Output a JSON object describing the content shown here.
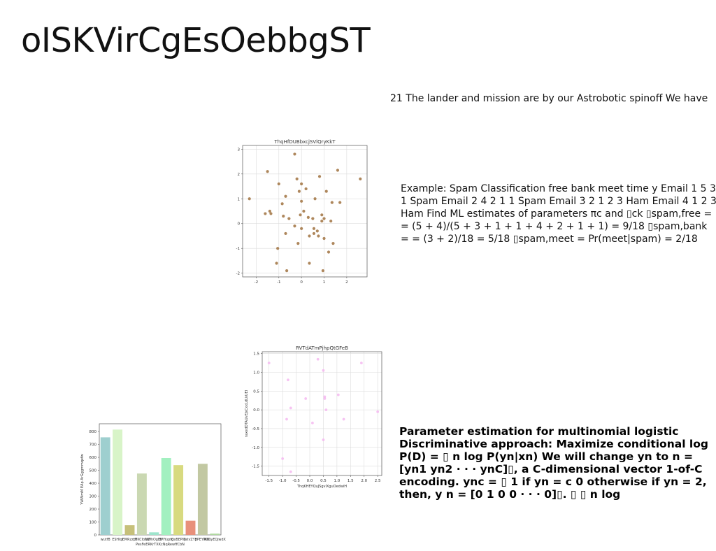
{
  "title": "oISKVirCgEsOebbgST",
  "caption": "21 The lander and mission are by our Astrobotic spinoff We have",
  "paragraph1": "Example: Spam Classification free bank meet time y Email 1 5 3 1 Spam Email 2 4 2 1 1 Spam Email 3 2 1 2 3 Ham Email 4 1 2 3 Ham Find ML estimates of parameters πc and ▯ck ▯spam,free = = (5 + 4)/(5 + 3 + 1 + 1 + 4 + 2 + 1 + 1) = 9/18 ▯spam,bank = = (3 + 2)/18 = 5/18 ▯spam,meet = Pr(meet|spam) = 2/18",
  "paragraph2": "Parameter estimation for multinomial logistic Discriminative approach: Maximize conditional log P(D) = ▯ n log P(yn|xn) We will change yn to n = [yn1 yn2 · · · ynC]▯, a C-dimensional vector 1-of-C encoding. ync = ▯ 1 if yn = c 0 otherwise if yn = 2, then, y n = [0 1 0 0 · · · 0]▯. ▯ ▯ n log",
  "chart_data": [
    {
      "type": "scatter",
      "title": "ThqHfDUBbxcjSVlQryKkT",
      "xlabel": "",
      "ylabel": "",
      "xlim": [
        -2.6,
        2.9
      ],
      "ylim": [
        -2.15,
        3.15
      ],
      "xticks": [
        "-2",
        "-1",
        "0",
        "1",
        "2"
      ],
      "yticks": [
        "-2",
        "-1",
        "0",
        "1",
        "2",
        "3"
      ],
      "grid": true,
      "color": "#a57a4a",
      "x": [
        -2.3,
        -1.5,
        -1.4,
        -1.35,
        -1.1,
        -1.0,
        -0.85,
        -0.7,
        -0.65,
        -0.55,
        -0.3,
        -0.2,
        -0.15,
        -0.1,
        -0.05,
        0.0,
        0.0,
        0.1,
        0.2,
        0.3,
        0.35,
        0.5,
        0.55,
        0.6,
        0.7,
        0.75,
        0.8,
        0.9,
        1.0,
        1.0,
        1.1,
        1.2,
        1.3,
        1.35,
        1.6,
        1.7,
        2.6,
        -1.6,
        -0.8,
        0.0,
        0.95,
        -1.05,
        -0.7,
        0.55,
        -0.3,
        0.9,
        0.35,
        1.4
      ],
      "y": [
        1.0,
        2.1,
        0.5,
        0.4,
        -1.6,
        1.6,
        0.8,
        1.1,
        -1.9,
        0.2,
        2.8,
        1.8,
        -0.8,
        1.3,
        0.35,
        1.6,
        -0.2,
        0.5,
        1.4,
        0.25,
        -0.5,
        0.2,
        -0.4,
        1.0,
        -0.3,
        -0.5,
        1.9,
        0.1,
        -0.6,
        0.2,
        1.3,
        -1.15,
        0.1,
        0.85,
        2.15,
        0.85,
        1.8,
        0.4,
        0.3,
        0.9,
        -1.9,
        -1.0,
        -0.4,
        -0.2,
        -0.1,
        0.35,
        -1.6,
        -0.8
      ]
    },
    {
      "type": "scatter",
      "title": "RVTdATmPjhpQtGFeB",
      "xlabel": "ThqKHEYQuJSgvlXguOedwiH",
      "ylabel": "raxedDTAUvEJsCxxLdLkUEI",
      "xlim": [
        -1.75,
        2.65
      ],
      "ylim": [
        -1.75,
        1.55
      ],
      "xticks": [
        "-1.5",
        "-1.0",
        "-0.5",
        "0.0",
        "0.5",
        "1.0",
        "1.5",
        "2.0",
        "2.5"
      ],
      "yticks": [
        "-1.5",
        "-1.0",
        "-0.5",
        "0.0",
        "0.5",
        "1.0",
        "1.5"
      ],
      "grid": true,
      "color": "#f4b8f0",
      "x": [
        -1.5,
        -1.0,
        -0.85,
        -0.8,
        -0.7,
        -0.7,
        -0.15,
        0.1,
        0.3,
        0.5,
        0.5,
        0.55,
        0.6,
        1.05,
        1.25,
        1.9,
        2.5,
        0.55
      ],
      "y": [
        1.25,
        -1.3,
        -0.25,
        0.8,
        0.05,
        -1.65,
        0.3,
        -0.35,
        1.35,
        1.05,
        -0.8,
        0.3,
        0.0,
        0.4,
        -0.25,
        1.25,
        -0.05,
        0.35
      ]
    },
    {
      "type": "bar",
      "title": "",
      "xlabel": "PesFeERKrTXKcNqRewffCbN",
      "ylabel": "YWWmM EAp ArGggmmqefw",
      "ylim": [
        0,
        860
      ],
      "yticks": [
        "0",
        "100",
        "200",
        "300",
        "400",
        "500",
        "600",
        "700",
        "800"
      ],
      "categories": [
        "wutfB",
        "ESHIqi",
        "EMRzztN",
        "pFKCIbNEI",
        "bWhOgEtf",
        "BPIYuptg",
        "QxBEPW",
        "JatvZYp",
        "BPEYMXC",
        "NDsyEQjwdX"
      ],
      "values": [
        755,
        815,
        75,
        475,
        20,
        595,
        540,
        110,
        550,
        10
      ],
      "colors": [
        "#9ecfcf",
        "#d8f4c8",
        "#c6c07a",
        "#cad8b2",
        "#9ee4cc",
        "#a2f0c0",
        "#d8da80",
        "#e8907a",
        "#c2c8a2",
        "#b0d8a0"
      ]
    }
  ]
}
